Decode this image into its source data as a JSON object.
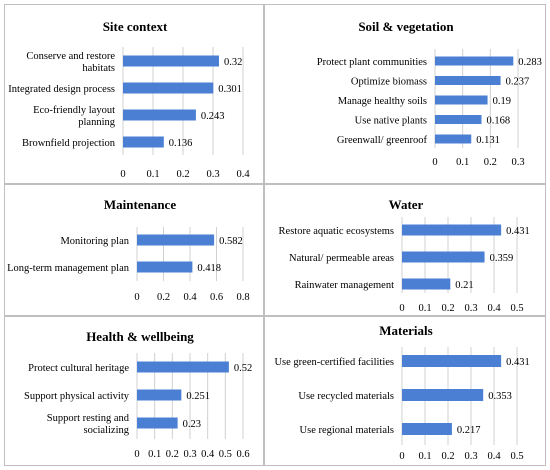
{
  "colors": {
    "bar": "#4a7fd4",
    "axis": "#d0d0d0",
    "border": "#bfbfbf"
  },
  "chart_data": [
    {
      "type": "bar",
      "orientation": "horizontal",
      "title": "Site context",
      "categories": [
        "Conserve and restore habitats",
        "Integrated design process",
        "Eco-friendly layout planning",
        "Brownfield projection"
      ],
      "values": [
        0.32,
        0.301,
        0.243,
        0.136
      ],
      "value_labels": [
        "0.32",
        "0.301",
        "0.243",
        "0.136"
      ],
      "xlim": [
        0,
        0.4
      ],
      "ticks": [
        "0",
        "0.1",
        "0.2",
        "0.3",
        "0.4"
      ]
    },
    {
      "type": "bar",
      "orientation": "horizontal",
      "title": "Soil & vegetation",
      "categories": [
        "Protect plant communities",
        "Optimize biomass",
        "Manage healthy soils",
        "Use native plants",
        "Greenwall/ greenroof"
      ],
      "values": [
        0.283,
        0.237,
        0.19,
        0.168,
        0.131
      ],
      "value_labels": [
        "0.283",
        "0.237",
        "0.19",
        "0.168",
        "0.131"
      ],
      "xlim": [
        0,
        0.3
      ],
      "ticks": [
        "0",
        "0.1",
        "0.2",
        "0.3"
      ]
    },
    {
      "type": "bar",
      "orientation": "horizontal",
      "title": "Maintenance",
      "categories": [
        "Monitoring plan",
        "Long-term management plan"
      ],
      "values": [
        0.582,
        0.418
      ],
      "value_labels": [
        "0.582",
        "0.418"
      ],
      "xlim": [
        0,
        0.8
      ],
      "ticks": [
        "0",
        "0.2",
        "0.4",
        "0.6",
        "0.8"
      ]
    },
    {
      "type": "bar",
      "orientation": "horizontal",
      "title": "Water",
      "categories": [
        "Restore aquatic ecosystems",
        "Natural/ permeable areas",
        "Rainwater management"
      ],
      "values": [
        0.431,
        0.359,
        0.21
      ],
      "value_labels": [
        "0.431",
        "0.359",
        "0.21"
      ],
      "xlim": [
        0,
        0.5
      ],
      "ticks": [
        "0",
        "0.1",
        "0.2",
        "0.3",
        "0.4",
        "0.5"
      ]
    },
    {
      "type": "bar",
      "orientation": "horizontal",
      "title": "Health & wellbeing",
      "categories": [
        "Protect cultural heritage",
        "Support physical activity",
        "Support resting and socializing"
      ],
      "values": [
        0.52,
        0.251,
        0.23
      ],
      "value_labels": [
        "0.52",
        "0.251",
        "0.23"
      ],
      "xlim": [
        0,
        0.6
      ],
      "ticks": [
        "0",
        "0.1",
        "0.2",
        "0.3",
        "0.4",
        "0.5",
        "0.6"
      ]
    },
    {
      "type": "bar",
      "orientation": "horizontal",
      "title": "Materials",
      "categories": [
        "Use green-certified facilities",
        "Use recycled materials",
        "Use regional materials"
      ],
      "values": [
        0.431,
        0.353,
        0.217
      ],
      "value_labels": [
        "0.431",
        "0.353",
        "0.217"
      ],
      "xlim": [
        0,
        0.5
      ],
      "ticks": [
        "0",
        "0.1",
        "0.2",
        "0.3",
        "0.4",
        "0.5"
      ]
    }
  ]
}
